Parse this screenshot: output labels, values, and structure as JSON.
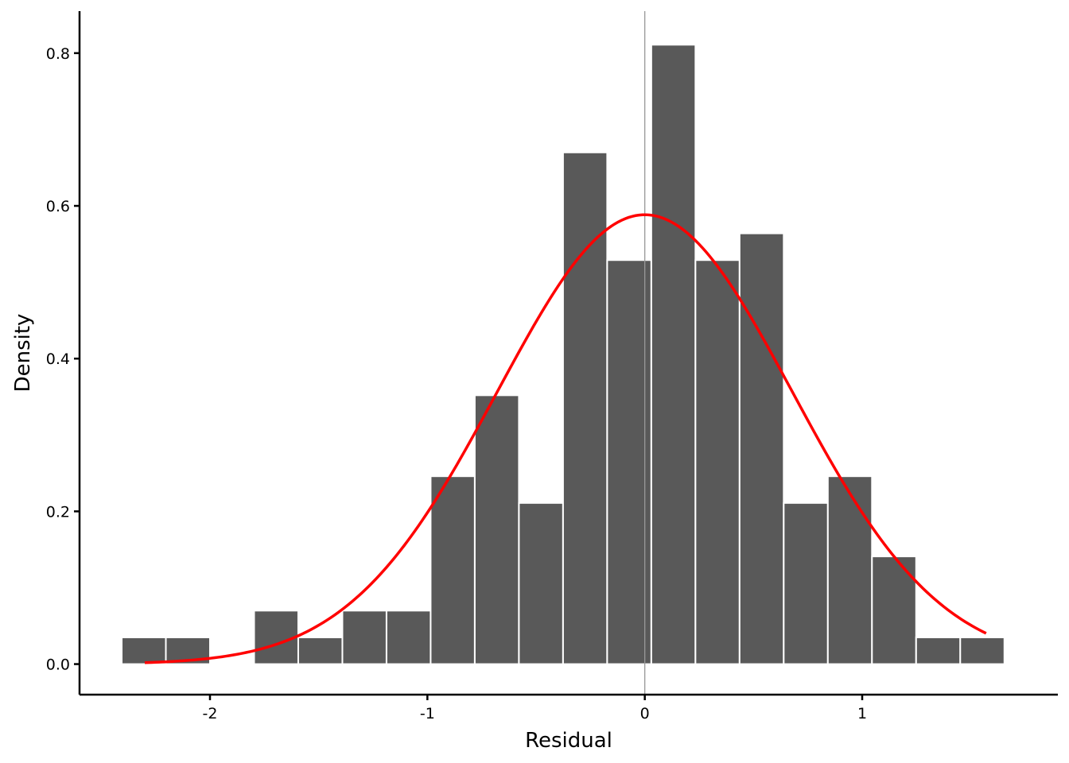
{
  "chart_data": {
    "type": "bar",
    "subtype": "histogram",
    "title": "",
    "xlabel": "Residual",
    "ylabel": "Density",
    "xlim": [
      -2.6,
      1.9
    ],
    "ylim": [
      -0.04,
      0.855
    ],
    "x_ticks": [
      -2,
      -1,
      0,
      1
    ],
    "x_tick_labels": [
      "-2",
      "-1",
      "0",
      "1"
    ],
    "y_ticks": [
      0.0,
      0.2,
      0.4,
      0.6,
      0.8
    ],
    "y_tick_labels": [
      "0.0",
      "0.2",
      "0.4",
      "0.6",
      "0.8"
    ],
    "bins": [
      {
        "x0": -2.406,
        "x1": -2.203,
        "density": 0.035
      },
      {
        "x0": -2.203,
        "x1": -2.0,
        "density": 0.035
      },
      {
        "x0": -2.0,
        "x1": -1.797,
        "density": 0.0
      },
      {
        "x0": -1.797,
        "x1": -1.594,
        "density": 0.07
      },
      {
        "x0": -1.594,
        "x1": -1.391,
        "density": 0.035
      },
      {
        "x0": -1.391,
        "x1": -1.188,
        "density": 0.07
      },
      {
        "x0": -1.188,
        "x1": -0.985,
        "density": 0.07
      },
      {
        "x0": -0.985,
        "x1": -0.782,
        "density": 0.246
      },
      {
        "x0": -0.782,
        "x1": -0.579,
        "density": 0.352
      },
      {
        "x0": -0.579,
        "x1": -0.376,
        "density": 0.211
      },
      {
        "x0": -0.376,
        "x1": -0.173,
        "density": 0.67
      },
      {
        "x0": -0.173,
        "x1": 0.03,
        "density": 0.529
      },
      {
        "x0": 0.03,
        "x1": 0.233,
        "density": 0.811
      },
      {
        "x0": 0.233,
        "x1": 0.436,
        "density": 0.529
      },
      {
        "x0": 0.436,
        "x1": 0.639,
        "density": 0.564
      },
      {
        "x0": 0.639,
        "x1": 0.842,
        "density": 0.211
      },
      {
        "x0": 0.842,
        "x1": 1.045,
        "density": 0.246
      },
      {
        "x0": 1.045,
        "x1": 1.248,
        "density": 0.141
      },
      {
        "x0": 1.248,
        "x1": 1.451,
        "density": 0.035
      },
      {
        "x0": 1.451,
        "x1": 1.654,
        "density": 0.035
      }
    ],
    "density_curve": {
      "distribution": "normal",
      "mean": 0.0,
      "sd": 0.678,
      "x_range": [
        -2.3,
        1.57
      ]
    },
    "reference_line": {
      "x": 0.0
    },
    "grid": false,
    "legend": "none",
    "colors": {
      "bar_fill": "#595959",
      "bar_edge": "#ffffff",
      "curve": "#ff0000",
      "reference_line": "#999999",
      "axis": "#000000"
    }
  }
}
